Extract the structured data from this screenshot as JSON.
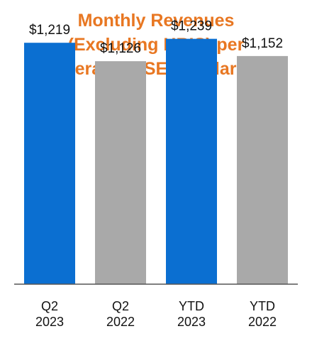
{
  "colors": {
    "title": "#E87722",
    "current": "#0B6FD1",
    "prior": "#A9A9A9",
    "axis": "#555555"
  },
  "chart_data": {
    "type": "bar",
    "title_lines": [
      "Monthly Revenues",
      "(Excluding HRIS) per",
      "Average WSE ($dollars)*"
    ],
    "categories": [
      [
        "Q2",
        "2023"
      ],
      [
        "Q2",
        "2022"
      ],
      [
        "YTD",
        "2023"
      ],
      [
        "YTD",
        "2022"
      ]
    ],
    "values": [
      1219,
      1126,
      1239,
      1152
    ],
    "value_labels": [
      "$1,219",
      "$1,126",
      "$1,239",
      "$1,152"
    ],
    "bar_color_keys": [
      "current",
      "prior",
      "current",
      "prior"
    ],
    "ylim": [
      0,
      1435
    ],
    "grid": false,
    "legend": "none"
  }
}
